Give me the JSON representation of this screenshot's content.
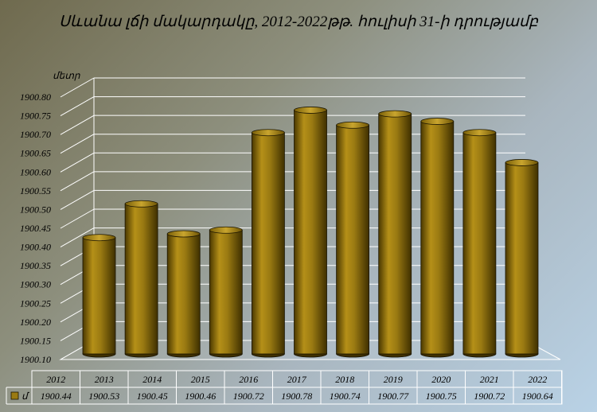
{
  "chart_data": {
    "type": "bar",
    "title": "Սևանա լճի մակարդակը, 2012-2022թթ. հուլիսի 31-ի դրությամբ",
    "ylabel": "մետր",
    "categories": [
      "2012",
      "2013",
      "2014",
      "2015",
      "2016",
      "2017",
      "2018",
      "2019",
      "2020",
      "2021",
      "2022"
    ],
    "series": [
      {
        "name": "մ",
        "values": [
          1900.44,
          1900.53,
          1900.45,
          1900.46,
          1900.72,
          1900.78,
          1900.74,
          1900.77,
          1900.75,
          1900.72,
          1900.64
        ]
      }
    ],
    "value_labels": [
      "1900.44",
      "1900.53",
      "1900.45",
      "1900.46",
      "1900.72",
      "1900.78",
      "1900.74",
      "1900.77",
      "1900.75",
      "1900.72",
      "1900.64"
    ],
    "ylim": [
      1900.1,
      1900.8
    ],
    "yticks": [
      "1900.10",
      "1900.15",
      "1900.20",
      "1900.25",
      "1900.30",
      "1900.35",
      "1900.40",
      "1900.45",
      "1900.50",
      "1900.55",
      "1900.60",
      "1900.65",
      "1900.70",
      "1900.75",
      "1900.80"
    ],
    "grid": true,
    "legend": "data table, bottom-left"
  },
  "colors": {
    "bar_fill": "#9a7a12",
    "bar_dark": "#4a3800",
    "bar_light": "#c9a52e",
    "grid": "#ffffff"
  }
}
